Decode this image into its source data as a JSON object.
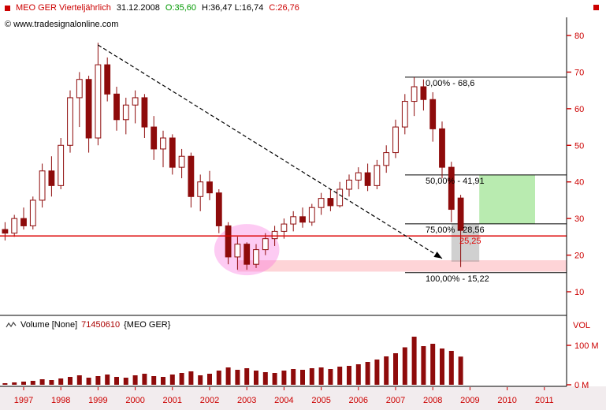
{
  "header": {
    "symbol": "MEO GER Vierteljährlich",
    "date": "31.12.2008",
    "open": "O:35,60",
    "high_low": "H:36,47 L:16,74",
    "close": "C:26,76",
    "copyright": "© www.tradesignalonline.com"
  },
  "volume_pane": {
    "label": "Volume [None]",
    "value": "71450610",
    "symbol": "{MEO GER}",
    "axis": {
      "title": "VOL",
      "ticks": [
        {
          "label": "100 M",
          "value": 100
        },
        {
          "label": "0 M",
          "value": 0
        }
      ]
    }
  },
  "chart_data": {
    "type": "candlestick",
    "title": "MEO GER Vierteljährlich",
    "period": "quarterly",
    "y_ticks": [
      80,
      70,
      60,
      50,
      40,
      30,
      20,
      10
    ],
    "x_years": [
      1997,
      1998,
      1999,
      2000,
      2001,
      2002,
      2003,
      2004,
      2005,
      2006,
      2007,
      2008,
      2009,
      2010,
      2011
    ],
    "candles": [
      {
        "t": "1996Q3",
        "o": 27,
        "h": 29,
        "l": 24,
        "c": 26,
        "v": 4
      },
      {
        "t": "1996Q4",
        "o": 26,
        "h": 31,
        "l": 25,
        "c": 30,
        "v": 6
      },
      {
        "t": "1997Q1",
        "o": 30,
        "h": 33,
        "l": 27,
        "c": 28,
        "v": 8
      },
      {
        "t": "1997Q2",
        "o": 28,
        "h": 36,
        "l": 27,
        "c": 35,
        "v": 10
      },
      {
        "t": "1997Q3",
        "o": 35,
        "h": 45,
        "l": 33,
        "c": 43,
        "v": 14
      },
      {
        "t": "1997Q4",
        "o": 43,
        "h": 47,
        "l": 36,
        "c": 39,
        "v": 12
      },
      {
        "t": "1998Q1",
        "o": 39,
        "h": 52,
        "l": 38,
        "c": 50,
        "v": 16
      },
      {
        "t": "1998Q2",
        "o": 50,
        "h": 65,
        "l": 48,
        "c": 63,
        "v": 20
      },
      {
        "t": "1998Q3",
        "o": 63,
        "h": 70,
        "l": 55,
        "c": 68,
        "v": 24
      },
      {
        "t": "1998Q4",
        "o": 68,
        "h": 69,
        "l": 48,
        "c": 52,
        "v": 18
      },
      {
        "t": "1999Q1",
        "o": 52,
        "h": 78,
        "l": 50,
        "c": 72,
        "v": 22
      },
      {
        "t": "1999Q2",
        "o": 72,
        "h": 74,
        "l": 62,
        "c": 64,
        "v": 26
      },
      {
        "t": "1999Q3",
        "o": 64,
        "h": 66,
        "l": 54,
        "c": 57,
        "v": 20
      },
      {
        "t": "1999Q4",
        "o": 57,
        "h": 63,
        "l": 53,
        "c": 61,
        "v": 18
      },
      {
        "t": "2000Q1",
        "o": 61,
        "h": 65,
        "l": 56,
        "c": 63,
        "v": 24
      },
      {
        "t": "2000Q2",
        "o": 63,
        "h": 64,
        "l": 52,
        "c": 55,
        "v": 28
      },
      {
        "t": "2000Q3",
        "o": 55,
        "h": 58,
        "l": 46,
        "c": 49,
        "v": 22
      },
      {
        "t": "2000Q4",
        "o": 49,
        "h": 54,
        "l": 44,
        "c": 52,
        "v": 20
      },
      {
        "t": "2001Q1",
        "o": 52,
        "h": 53,
        "l": 42,
        "c": 44,
        "v": 26
      },
      {
        "t": "2001Q2",
        "o": 44,
        "h": 49,
        "l": 41,
        "c": 47,
        "v": 30
      },
      {
        "t": "2001Q3",
        "o": 47,
        "h": 48,
        "l": 33,
        "c": 36,
        "v": 34
      },
      {
        "t": "2001Q4",
        "o": 36,
        "h": 42,
        "l": 32,
        "c": 40,
        "v": 24
      },
      {
        "t": "2002Q1",
        "o": 40,
        "h": 43,
        "l": 35,
        "c": 37,
        "v": 28
      },
      {
        "t": "2002Q2",
        "o": 37,
        "h": 38,
        "l": 26,
        "c": 28,
        "v": 36
      },
      {
        "t": "2002Q3",
        "o": 28,
        "h": 29,
        "l": 17.5,
        "c": 19.5,
        "v": 44
      },
      {
        "t": "2002Q4",
        "o": 19.5,
        "h": 25,
        "l": 16,
        "c": 23,
        "v": 38
      },
      {
        "t": "2003Q1",
        "o": 23,
        "h": 23.5,
        "l": 16,
        "c": 17.5,
        "v": 42
      },
      {
        "t": "2003Q2",
        "o": 17.5,
        "h": 23,
        "l": 16.5,
        "c": 21.5,
        "v": 36
      },
      {
        "t": "2003Q3",
        "o": 21.5,
        "h": 26,
        "l": 20,
        "c": 24.5,
        "v": 32
      },
      {
        "t": "2003Q4",
        "o": 24.5,
        "h": 28,
        "l": 22.5,
        "c": 26.5,
        "v": 30
      },
      {
        "t": "2004Q1",
        "o": 26.5,
        "h": 30,
        "l": 24.5,
        "c": 28.5,
        "v": 36
      },
      {
        "t": "2004Q2",
        "o": 28.5,
        "h": 32,
        "l": 26.5,
        "c": 30.5,
        "v": 40
      },
      {
        "t": "2004Q3",
        "o": 30.5,
        "h": 33,
        "l": 27.5,
        "c": 29,
        "v": 38
      },
      {
        "t": "2004Q4",
        "o": 29,
        "h": 34,
        "l": 28,
        "c": 33,
        "v": 42
      },
      {
        "t": "2005Q1",
        "o": 33,
        "h": 37,
        "l": 31,
        "c": 35.5,
        "v": 44
      },
      {
        "t": "2005Q2",
        "o": 35.5,
        "h": 38,
        "l": 32,
        "c": 33.5,
        "v": 40
      },
      {
        "t": "2005Q3",
        "o": 33.5,
        "h": 40,
        "l": 33,
        "c": 38,
        "v": 46
      },
      {
        "t": "2005Q4",
        "o": 38,
        "h": 42,
        "l": 36,
        "c": 40.5,
        "v": 48
      },
      {
        "t": "2006Q1",
        "o": 40.5,
        "h": 44,
        "l": 38,
        "c": 42.5,
        "v": 52
      },
      {
        "t": "2006Q2",
        "o": 42.5,
        "h": 45,
        "l": 37.5,
        "c": 39,
        "v": 58
      },
      {
        "t": "2006Q3",
        "o": 39,
        "h": 46,
        "l": 38,
        "c": 44.5,
        "v": 64
      },
      {
        "t": "2006Q4",
        "o": 44.5,
        "h": 50,
        "l": 42.5,
        "c": 48,
        "v": 72
      },
      {
        "t": "2007Q1",
        "o": 48,
        "h": 57,
        "l": 46.5,
        "c": 55,
        "v": 80
      },
      {
        "t": "2007Q2",
        "o": 55,
        "h": 64,
        "l": 53,
        "c": 62,
        "v": 95
      },
      {
        "t": "2007Q3",
        "o": 62,
        "h": 68.6,
        "l": 58,
        "c": 66,
        "v": 122
      },
      {
        "t": "2007Q4",
        "o": 66,
        "h": 68,
        "l": 59.5,
        "c": 62.5,
        "v": 98
      },
      {
        "t": "2008Q1",
        "o": 62.5,
        "h": 64.5,
        "l": 51,
        "c": 54.5,
        "v": 104
      },
      {
        "t": "2008Q2",
        "o": 54.5,
        "h": 56.5,
        "l": 41,
        "c": 44,
        "v": 92
      },
      {
        "t": "2008Q3",
        "o": 44,
        "h": 45.5,
        "l": 29,
        "c": 32.5,
        "v": 86
      },
      {
        "t": "2008Q4",
        "o": 35.6,
        "h": 36.47,
        "l": 16.74,
        "c": 26.76,
        "v": 71.45
      }
    ],
    "fibonacci": {
      "start_t": "2007Q2",
      "levels": [
        {
          "label": "0,00% - 68,6",
          "price": 68.6
        },
        {
          "label": "50,00% - 41,91",
          "price": 41.91
        },
        {
          "label": "75,00% - 28,56",
          "price": 28.56
        },
        {
          "label": "100,00% - 15,22",
          "price": 15.22
        }
      ]
    },
    "red_line": {
      "price": 25.25,
      "label": "25,25"
    },
    "trendline": {
      "style": "dashed-arrow",
      "from": {
        "t": "1999Q1",
        "price": 77.4
      },
      "to": {
        "t": "2008Q2",
        "price": 19.1
      }
    },
    "highlights": {
      "circle": {
        "t": "2003Q1",
        "price": 21.5,
        "rx_quarters": 3.5,
        "ry_price": 14
      },
      "support_band": {
        "t_from": "2002Q4",
        "price_from": 15.5,
        "price_to": 18.6
      },
      "target_zone": {
        "t_from": "2009Q2",
        "t_to": "2010Q4",
        "price_from": 28.56,
        "price_to": 41.91
      },
      "gray_zone": {
        "t_from": "2008Q3",
        "t_to": "2009Q2",
        "price_from": 18.2,
        "price_to": 28.56
      }
    },
    "colors": {
      "up": "#ffffff",
      "down": "#8e0b0b",
      "wick": "#8e0b0b",
      "volume": "#8e0b0b",
      "axis": "#cc0000",
      "fib": "#000000",
      "red_line": "#dd0000",
      "trendline": "#000000",
      "band": "rgba(250,100,110,0.28)",
      "target_zone": "rgba(100,210,80,0.45)",
      "gray_zone": "rgba(120,120,120,0.35)",
      "circle": "rgba(250,105,220,0.35)",
      "footer_bg": "#f2ecee"
    }
  }
}
